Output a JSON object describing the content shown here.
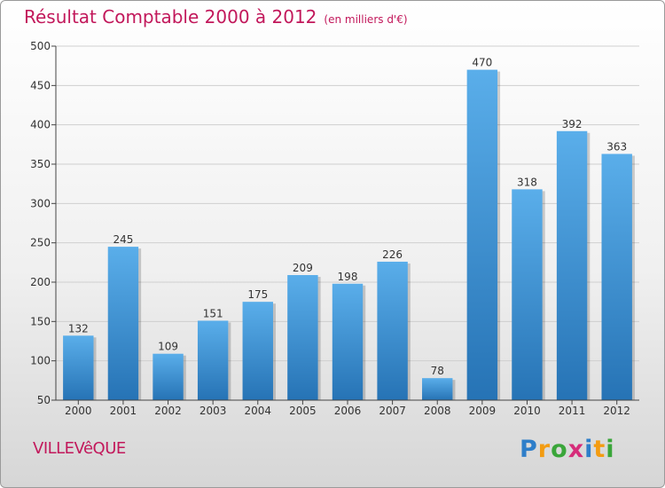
{
  "title": "Résultat Comptable 2000 à 2012",
  "subtitle": "(en milliers d'€)",
  "commune": "VILLEVêQUE",
  "logo": {
    "letters": [
      {
        "ch": "P",
        "color": "#2e7ec9"
      },
      {
        "ch": "r",
        "color": "#f39c12"
      },
      {
        "ch": "o",
        "color": "#3aa63a"
      },
      {
        "ch": "x",
        "color": "#d62d7a"
      },
      {
        "ch": "i",
        "color": "#2e7ec9"
      },
      {
        "ch": "t",
        "color": "#f39c12"
      },
      {
        "ch": "i",
        "color": "#3aa63a"
      }
    ]
  },
  "colors": {
    "accent": "#c2185b",
    "bar_top": "#5aaeea",
    "bar_bottom": "#2673b5",
    "axis": "#444444",
    "grid": "#cfcfcf"
  },
  "chart_data": {
    "type": "bar",
    "categories": [
      "2000",
      "2001",
      "2002",
      "2003",
      "2004",
      "2005",
      "2006",
      "2007",
      "2008",
      "2009",
      "2010",
      "2011",
      "2012"
    ],
    "values": [
      132,
      245,
      109,
      151,
      175,
      209,
      198,
      226,
      78,
      470,
      318,
      392,
      363
    ],
    "ylim": [
      50,
      500
    ],
    "yticks": [
      50,
      100,
      150,
      200,
      250,
      300,
      350,
      400,
      450,
      500
    ],
    "grid": true,
    "title": "Résultat Comptable 2000 à 2012",
    "xlabel": "",
    "ylabel": ""
  }
}
